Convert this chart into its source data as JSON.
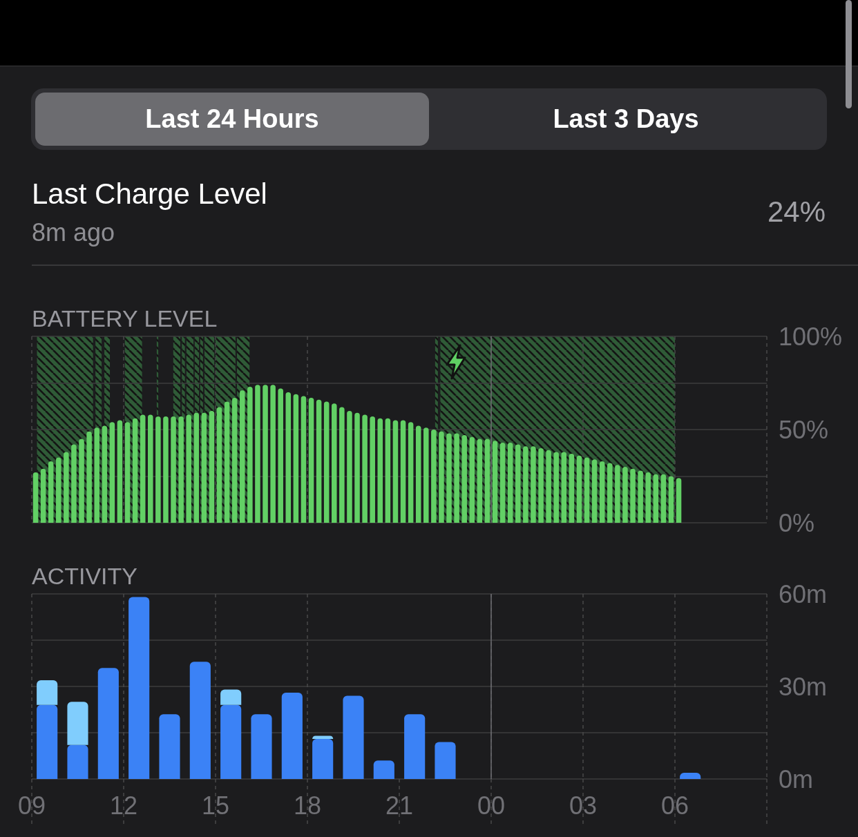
{
  "chart_data": [
    {
      "type": "other",
      "title": "Last Charge Level",
      "subtitle": "8m ago",
      "annotations": [
        "Last 24 Hours",
        "Last 3 Days",
        "24%"
      ]
    },
    {
      "type": "bar",
      "title": "BATTERY LEVEL",
      "color": "#62d065",
      "x": [
        9.125,
        9.375,
        9.625,
        9.875,
        10.125,
        10.375,
        10.625,
        10.875,
        11.125,
        11.375,
        11.625,
        11.875,
        12.125,
        12.375,
        12.625,
        12.875,
        13.125,
        13.375,
        13.625,
        13.875,
        14.125,
        14.375,
        14.625,
        14.875,
        15.125,
        15.375,
        15.625,
        15.875,
        16.125,
        16.375,
        16.625,
        16.875,
        17.125,
        17.375,
        17.625,
        17.875,
        18.125,
        18.375,
        18.625,
        18.875,
        19.125,
        19.375,
        19.625,
        19.875,
        20.125,
        20.375,
        20.625,
        20.875,
        21.125,
        21.375,
        21.625,
        21.875,
        22.125,
        22.375,
        22.625,
        22.875,
        23.125,
        23.375,
        23.625,
        23.875
      ],
      "values": [
        27,
        29,
        33,
        35,
        38,
        42,
        45,
        49,
        51,
        52,
        54,
        55,
        54,
        56,
        58,
        58,
        57,
        57,
        57,
        57,
        58,
        59,
        59,
        60,
        62,
        65,
        67,
        71,
        73,
        74,
        74,
        74,
        72,
        70,
        69,
        68,
        67,
        66,
        65,
        64,
        62,
        60,
        59,
        58,
        57,
        56,
        56,
        55,
        55,
        54,
        52,
        51,
        50,
        49,
        48,
        48,
        47,
        46,
        45,
        45
      ],
      "xlim": [
        9,
        24
      ],
      "xticks": [
        9,
        12,
        15,
        18,
        21
      ],
      "ylim": [
        0,
        100
      ],
      "yticks": [
        0,
        25,
        50,
        75,
        100
      ],
      "tick_labels": false,
      "grid": true,
      "bands": [
        {
          "axis": "x",
          "from": 9.17,
          "to": 11.0,
          "color": "#2f5b37"
        },
        {
          "axis": "x",
          "from": 11.08,
          "to": 11.28,
          "color": "#2f5b37"
        },
        {
          "axis": "x",
          "from": 11.37,
          "to": 11.55,
          "color": "#2f5b37"
        },
        {
          "axis": "x",
          "from": 12.04,
          "to": 12.6,
          "color": "#2f5b37"
        },
        {
          "axis": "x",
          "from": 13.08,
          "to": 13.13,
          "color": "#2f5b37"
        },
        {
          "axis": "x",
          "from": 13.62,
          "to": 13.85,
          "color": "#2f5b37"
        },
        {
          "axis": "x",
          "from": 13.9,
          "to": 14.0,
          "color": "#2f5b37"
        },
        {
          "axis": "x",
          "from": 14.05,
          "to": 14.28,
          "color": "#2f5b37"
        },
        {
          "axis": "x",
          "from": 14.32,
          "to": 14.46,
          "color": "#2f5b37"
        },
        {
          "axis": "x",
          "from": 14.5,
          "to": 14.59,
          "color": "#2f5b37"
        },
        {
          "axis": "x",
          "from": 14.64,
          "to": 14.96,
          "color": "#2f5b37"
        },
        {
          "axis": "x",
          "from": 15.0,
          "to": 15.65,
          "color": "#2f5b37"
        },
        {
          "axis": "x",
          "from": 15.7,
          "to": 16.11,
          "color": "#2f5b37"
        },
        {
          "axis": "x",
          "from": 22.17,
          "to": 22.26,
          "color": "#2f5b37"
        },
        {
          "axis": "x",
          "from": 22.34,
          "to": 24,
          "color": "#2f5b37"
        }
      ]
    },
    {
      "type": "bar",
      "color": "#62d065",
      "x": [
        0.125,
        0.375,
        0.625,
        0.875,
        1.125,
        1.375,
        1.625,
        1.875,
        2.125,
        2.375,
        2.625,
        2.875,
        3.125,
        3.375,
        3.625,
        3.875,
        4.125,
        4.375,
        4.625,
        4.875,
        5.125,
        5.375,
        5.625,
        5.875,
        6.125
      ],
      "values": [
        44,
        43,
        43,
        42,
        41,
        41,
        40,
        39,
        38,
        38,
        37,
        36,
        35,
        34,
        33,
        32,
        31,
        30,
        29,
        28,
        27,
        26,
        26,
        25,
        24
      ],
      "xlim": [
        0,
        9
      ],
      "xticks": [
        0,
        3,
        6,
        9
      ],
      "ylim": [
        0,
        100
      ],
      "yticks": [
        {
          "value": 0,
          "label": "0%"
        },
        {
          "value": 25,
          "label": null
        },
        {
          "value": 50,
          "label": "50%"
        },
        {
          "value": 75,
          "label": null
        },
        {
          "value": 100,
          "label": "100%"
        }
      ],
      "tick_labels": "y",
      "grid": true,
      "bands": [
        {
          "axis": "x",
          "from": 0,
          "to": 6.0,
          "color": "#2f5b37"
        }
      ],
      "ref_lines": [
        {
          "axis": "x",
          "value": 0
        }
      ]
    },
    {
      "type": "bar",
      "title": "ACTIVITY",
      "stacked": true,
      "x": [
        9.5,
        10.5,
        11.5,
        12.5,
        13.5,
        14.5,
        15.5,
        16.5,
        17.5,
        18.5,
        19.5,
        20.5,
        21.5,
        22.5
      ],
      "series": [
        {
          "color": "#3b82f6",
          "values": [
            24,
            11,
            36,
            59,
            21,
            38,
            24,
            21,
            28,
            13,
            27,
            6,
            21,
            12
          ]
        },
        {
          "color": "#80cdfd",
          "values": [
            8,
            14,
            null,
            null,
            null,
            null,
            5,
            null,
            null,
            1,
            null,
            null,
            null,
            null
          ]
        }
      ],
      "xlim": [
        9,
        24
      ],
      "xticks": [
        {
          "value": 9,
          "label": "09"
        },
        12,
        15,
        18,
        21
      ],
      "ylim": [
        0,
        60
      ],
      "yticks": [
        0,
        15,
        30,
        45,
        60
      ],
      "tick_labels": "x",
      "grid": true
    },
    {
      "type": "bar",
      "color": "#3b82f6",
      "x": [
        6.5
      ],
      "values": [
        2
      ],
      "xlim": [
        0,
        9
      ],
      "xticks": [
        {
          "value": 0,
          "label": "00"
        },
        {
          "value": 3,
          "label": "03"
        },
        {
          "value": 6,
          "label": "06"
        },
        {
          "value": 9,
          "label": null
        }
      ],
      "ylim": [
        0,
        60
      ],
      "yticks": [
        {
          "value": 0,
          "label": "0m"
        },
        {
          "value": 15,
          "label": null
        },
        {
          "value": 30,
          "label": "30m"
        },
        {
          "value": 45,
          "label": null
        },
        {
          "value": 60,
          "label": "60m"
        }
      ],
      "grid": true,
      "ref_lines": [
        {
          "axis": "x",
          "value": 0
        }
      ]
    }
  ]
}
